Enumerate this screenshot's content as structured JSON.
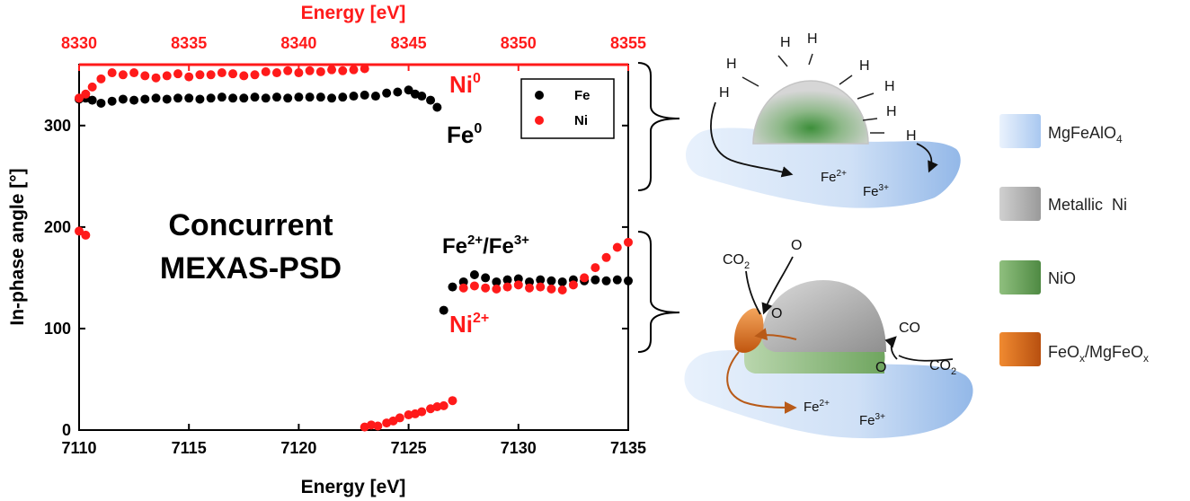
{
  "chart_data": {
    "type": "scatter",
    "xlabel_bottom": "Energy [eV]",
    "xlabel_top": "Energy [eV]",
    "ylabel": "In-phase angle [°]",
    "xlim_bottom": [
      7110,
      7135
    ],
    "xlim_top": [
      8330,
      8355
    ],
    "ylim": [
      0,
      360
    ],
    "xticks_bottom": [
      "7110",
      "7115",
      "7120",
      "7125",
      "7130",
      "7135"
    ],
    "xticks_top": [
      "8330",
      "8335",
      "8340",
      "8345",
      "8350",
      "8355"
    ],
    "yticks": [
      "0",
      "100",
      "200",
      "300"
    ],
    "colors": {
      "Fe": "#000000",
      "Ni": "#ff1a1a",
      "axis_top": "#ff1a1a"
    },
    "series": [
      {
        "name": "Fe",
        "axis": "bottom",
        "x": [
          7110.0,
          7110.3,
          7110.6,
          7111.0,
          7111.5,
          7112.0,
          7112.5,
          7113.0,
          7113.5,
          7114.0,
          7114.5,
          7115.0,
          7115.5,
          7116.0,
          7116.5,
          7117.0,
          7117.5,
          7118.0,
          7118.5,
          7119.0,
          7119.5,
          7120.0,
          7120.5,
          7121.0,
          7121.5,
          7122.0,
          7122.5,
          7123.0,
          7123.5,
          7124.0,
          7124.5,
          7125.0,
          7125.3,
          7125.6,
          7126.0,
          7126.3,
          7126.6,
          7127.0,
          7127.5,
          7128.0,
          7128.5,
          7129.0,
          7129.5,
          7130.0,
          7130.5,
          7131.0,
          7131.5,
          7132.0,
          7132.5,
          7133.0,
          7133.5,
          7134.0,
          7134.5,
          7135.0
        ],
        "y": [
          326,
          327,
          325,
          322,
          324,
          326,
          325,
          326,
          327,
          326,
          327,
          327,
          326,
          327,
          328,
          327,
          327,
          328,
          327,
          328,
          327,
          328,
          328,
          328,
          327,
          328,
          329,
          330,
          329,
          332,
          333,
          335,
          331,
          329,
          325,
          318,
          118,
          141,
          146,
          153,
          150,
          146,
          148,
          149,
          146,
          148,
          147,
          146,
          148,
          147,
          148,
          147,
          148,
          147
        ]
      },
      {
        "name": "Ni",
        "axis": "top",
        "x": [
          8330.0,
          8330.3,
          8330.6,
          8331.0,
          8331.5,
          8332.0,
          8332.5,
          8333.0,
          8333.5,
          8334.0,
          8334.5,
          8335.0,
          8335.5,
          8336.0,
          8336.5,
          8337.0,
          8337.5,
          8338.0,
          8338.5,
          8339.0,
          8339.5,
          8340.0,
          8340.5,
          8341.0,
          8341.5,
          8342.0,
          8342.5,
          8343.0,
          8330.0,
          8330.3,
          8343.0,
          8343.3,
          8343.6,
          8344.0,
          8344.3,
          8344.6,
          8345.0,
          8345.3,
          8345.6,
          8346.0,
          8346.3,
          8346.6,
          8347.0,
          8347.5,
          8348.0,
          8348.5,
          8349.0,
          8349.5,
          8350.0,
          8350.5,
          8351.0,
          8351.5,
          8352.0,
          8352.5,
          8353.0,
          8353.5,
          8354.0,
          8354.5,
          8355.0
        ],
        "y": [
          327,
          331,
          338,
          346,
          352,
          350,
          352,
          349,
          347,
          349,
          351,
          348,
          350,
          350,
          352,
          351,
          349,
          350,
          353,
          352,
          354,
          352,
          354,
          353,
          355,
          354,
          355,
          356,
          196,
          192,
          3,
          5,
          4,
          7,
          9,
          12,
          15,
          16,
          18,
          21,
          23,
          24,
          29,
          140,
          142,
          140,
          139,
          141,
          143,
          140,
          141,
          139,
          138,
          143,
          150,
          160,
          170,
          180,
          185
        ]
      }
    ],
    "annotations": [
      {
        "text": "Ni",
        "sup": "0",
        "color": "#ff1a1a"
      },
      {
        "text": "Fe",
        "sup": "0",
        "color": "#000000"
      },
      {
        "text": "Fe",
        "sup": "2+",
        "text2": "/Fe",
        "sup2": "3+",
        "color": "#000000"
      },
      {
        "text": "Ni",
        "sup": "2+",
        "color": "#ff1a1a"
      },
      {
        "text": "Concurrent",
        "color": "#000000"
      },
      {
        "text": "MEXAS-PSD",
        "color": "#000000"
      }
    ],
    "legend": {
      "position": "top-right",
      "entries": [
        "Fe",
        "Ni"
      ]
    }
  },
  "schematic": {
    "top": {
      "h_labels": [
        "H",
        "H",
        "H",
        "H",
        "H",
        "H",
        "H",
        "H"
      ],
      "fe2": {
        "base": "Fe",
        "sup": "2+"
      },
      "fe3": {
        "base": "Fe",
        "sup": "3+"
      }
    },
    "bottom": {
      "co2_left": {
        "base": "CO",
        "sub": "2"
      },
      "o_top": "O",
      "o_left": "O",
      "co": "CO",
      "o_right": "O",
      "co2_right": {
        "base": "CO",
        "sub": "2"
      },
      "fe2": {
        "base": "Fe",
        "sup": "2+"
      },
      "fe3": {
        "base": "Fe",
        "sup": "3+"
      }
    }
  },
  "key": [
    {
      "label": "MgFeAlO",
      "sub": "4",
      "color": "#a9c8f0"
    },
    {
      "label": "Metallic  Ni",
      "color": "#a0a0a0"
    },
    {
      "label": "NiO",
      "color": "#5f9a4f"
    },
    {
      "label": "FeO",
      "sub": "x",
      "label2": "/MgFeO",
      "sub2": "x",
      "color": "#e07020"
    }
  ]
}
